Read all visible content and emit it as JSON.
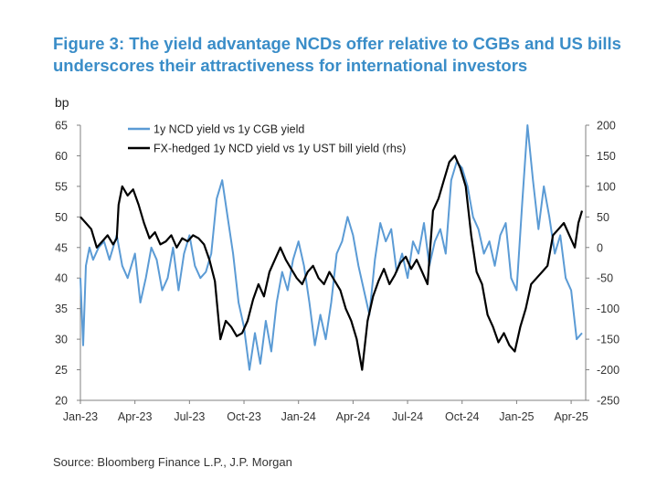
{
  "figure": {
    "title_line1": "Figure 3: The yield advantage NCDs offer relative to CGBs and US bills",
    "title_line2": "underscores their attractiveness for international investors",
    "source": "Source: Bloomberg Finance L.P., J.P. Morgan"
  },
  "chart_data": {
    "type": "line",
    "title": "Figure 3: The yield advantage NCDs offer relative to CGBs and US bills underscores their attractiveness for international investors",
    "ylabel": "bp",
    "xlabel": "",
    "ylim": [
      20,
      65
    ],
    "y2lim": [
      -250,
      200
    ],
    "yticks": [
      20,
      25,
      30,
      35,
      40,
      45,
      50,
      55,
      60,
      65
    ],
    "y2ticks": [
      -250,
      -200,
      -150,
      -100,
      -50,
      0,
      50,
      100,
      150,
      200
    ],
    "xlim": [
      0,
      27.8
    ],
    "xtick_labels": [
      "Jan-23",
      "Apr-23",
      "Jul-23",
      "Oct-23",
      "Jan-24",
      "Apr-24",
      "Jul-24",
      "Oct-24",
      "Jan-25",
      "Apr-25"
    ],
    "xtick_months": [
      0,
      3,
      6,
      9,
      12,
      15,
      18,
      21,
      24,
      27
    ],
    "x_unit": "months since Jan-23",
    "legend_position": "top-left",
    "grid": false,
    "series": [
      {
        "name": "1y NCD yield vs 1y CGB yield",
        "axis": "left",
        "color": "#5b9bd5",
        "x": [
          0,
          0.15,
          0.3,
          0.5,
          0.7,
          1.0,
          1.3,
          1.6,
          2.0,
          2.3,
          2.6,
          3.0,
          3.3,
          3.6,
          3.9,
          4.2,
          4.5,
          4.8,
          5.1,
          5.4,
          5.7,
          6.0,
          6.3,
          6.6,
          6.9,
          7.2,
          7.5,
          7.8,
          8.1,
          8.4,
          8.7,
          9.0,
          9.3,
          9.6,
          9.9,
          10.2,
          10.5,
          10.8,
          11.1,
          11.4,
          11.7,
          12.0,
          12.3,
          12.6,
          12.9,
          13.2,
          13.5,
          13.8,
          14.1,
          14.4,
          14.7,
          15.0,
          15.3,
          15.6,
          15.9,
          16.2,
          16.5,
          16.8,
          17.1,
          17.4,
          17.7,
          18.0,
          18.3,
          18.6,
          18.9,
          19.2,
          19.5,
          19.8,
          20.1,
          20.4,
          20.7,
          21.0,
          21.3,
          21.6,
          21.9,
          22.2,
          22.5,
          22.8,
          23.1,
          23.4,
          23.7,
          24.0,
          24.3,
          24.6,
          24.9,
          25.2,
          25.5,
          25.8,
          26.1,
          26.4,
          26.7,
          27.0,
          27.3,
          27.6
        ],
        "values": [
          40,
          29,
          42,
          45,
          43,
          45,
          46,
          43,
          47,
          42,
          40,
          44,
          36,
          40,
          45,
          43,
          38,
          40,
          45,
          38,
          44,
          47,
          42,
          40,
          41,
          44,
          53,
          56,
          50,
          44,
          36,
          32,
          25,
          31,
          26,
          33,
          28,
          36,
          41,
          38,
          43,
          46,
          42,
          36,
          29,
          34,
          30,
          36,
          44,
          46,
          50,
          47,
          42,
          38,
          34,
          43,
          49,
          46,
          48,
          41,
          44,
          40,
          46,
          44,
          49,
          42,
          46,
          48,
          44,
          56,
          59,
          58,
          55,
          50,
          48,
          44,
          46,
          42,
          47,
          49,
          40,
          38,
          52,
          65,
          56,
          48,
          55,
          50,
          44,
          47,
          40,
          38,
          30,
          31
        ]
      },
      {
        "name": "FX-hedged 1y NCD yield vs 1y UST bill yield (rhs)",
        "axis": "right",
        "color": "#000000",
        "x": [
          0,
          0.3,
          0.6,
          0.9,
          1.2,
          1.5,
          1.8,
          2.0,
          2.1,
          2.3,
          2.6,
          2.9,
          3.2,
          3.5,
          3.8,
          4.1,
          4.4,
          4.7,
          5.0,
          5.3,
          5.6,
          5.9,
          6.2,
          6.5,
          6.8,
          7.1,
          7.4,
          7.7,
          8.0,
          8.3,
          8.6,
          8.9,
          9.2,
          9.5,
          9.8,
          10.1,
          10.4,
          10.7,
          11.0,
          11.3,
          11.6,
          11.9,
          12.2,
          12.5,
          12.8,
          13.1,
          13.4,
          13.7,
          14.0,
          14.3,
          14.6,
          14.9,
          15.2,
          15.5,
          15.8,
          16.1,
          16.4,
          16.7,
          17.0,
          17.3,
          17.6,
          17.9,
          18.2,
          18.5,
          18.8,
          19.1,
          19.4,
          19.7,
          20.0,
          20.3,
          20.6,
          20.9,
          21.2,
          21.5,
          21.8,
          22.1,
          22.4,
          22.7,
          23.0,
          23.3,
          23.6,
          23.9,
          24.2,
          24.5,
          24.8,
          25.1,
          25.4,
          25.7,
          26.0,
          26.3,
          26.6,
          26.9,
          27.2,
          27.4,
          27.6
        ],
        "values": [
          50,
          40,
          30,
          0,
          10,
          20,
          5,
          15,
          70,
          100,
          85,
          95,
          70,
          40,
          15,
          25,
          5,
          10,
          20,
          0,
          15,
          10,
          20,
          15,
          5,
          -20,
          -55,
          -150,
          -120,
          -130,
          -145,
          -140,
          -120,
          -85,
          -60,
          -80,
          -40,
          -20,
          0,
          -20,
          -35,
          -50,
          -60,
          -40,
          -30,
          -50,
          -60,
          -40,
          -55,
          -70,
          -100,
          -120,
          -150,
          -200,
          -120,
          -80,
          -55,
          -35,
          -60,
          -45,
          -25,
          -15,
          -35,
          -20,
          -40,
          -60,
          60,
          80,
          110,
          140,
          150,
          130,
          100,
          20,
          -40,
          -60,
          -110,
          -130,
          -155,
          -140,
          -160,
          -170,
          -130,
          -100,
          -60,
          -50,
          -40,
          -30,
          20,
          30,
          40,
          20,
          0,
          40,
          60
        ]
      }
    ]
  }
}
